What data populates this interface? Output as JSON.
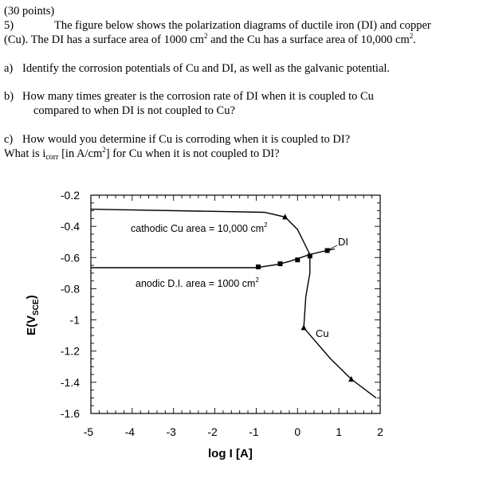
{
  "header": {
    "points": "(30 points)",
    "problem_number": "5)",
    "intro_line1": "The figure below shows the polarization diagrams of ductile iron (DI) and copper",
    "intro_line2_a": "(Cu).  The DI has a surface area of 1000 cm",
    "intro_line2_b": " and the Cu has a surface area of 10,000 cm",
    "intro_line2_end": ".",
    "sup2": "2"
  },
  "questions": {
    "a_label": "a)",
    "a_text": "Identify the corrosion potentials of Cu and DI, as well as the galvanic potential.",
    "b_label": "b)",
    "b_text1": "How many times greater is the corrosion rate of DI when it is coupled to Cu",
    "b_text2": "compared to when DI is not coupled to Cu?",
    "c_label": "c)",
    "c_text1": "How would you determine if Cu is corroding when it is coupled to DI?",
    "c_text2_a": "What is i",
    "c_text2_sub": "corr",
    "c_text2_b": " [in A/cm",
    "c_text2_c": "] for Cu when it is not coupled to DI?"
  },
  "chart_data": {
    "type": "line",
    "title": "",
    "xlabel": "log I [A]",
    "ylabel_main": "E(V",
    "ylabel_sub": "SCE",
    "ylabel_close": ")",
    "xlim": [
      -5,
      2
    ],
    "ylim": [
      -1.6,
      -0.2
    ],
    "x_ticks": [
      "-5",
      "-4",
      "-3",
      "-2",
      "-1",
      "0",
      "1",
      "2"
    ],
    "y_ticks": [
      "-0.2",
      "-0.4",
      "-0.6",
      "-0.8",
      "-1",
      "-1.2",
      "-1.4",
      "-1.6"
    ],
    "annotations": {
      "cathodic_a": "cathodic Cu area = 10,000 cm",
      "cathodic_sup": "2",
      "anodic_a": "anodic D.I. area = 1000 cm",
      "anodic_sup": "2",
      "di_label": "DI",
      "cu_label": "Cu"
    },
    "series": [
      {
        "name": "Cu",
        "marker": "triangle",
        "points": [
          [
            -5.0,
            -0.29
          ],
          [
            -0.8,
            -0.31
          ],
          [
            -0.3,
            -0.34
          ],
          [
            0.0,
            -0.42
          ],
          [
            0.3,
            -0.58
          ],
          [
            0.3,
            -0.7
          ],
          [
            0.2,
            -0.85
          ],
          [
            0.15,
            -1.05
          ],
          [
            0.8,
            -1.25
          ],
          [
            1.3,
            -1.38
          ],
          [
            1.9,
            -1.5
          ]
        ],
        "marker_points": [
          [
            -0.3,
            -0.34
          ],
          [
            0.15,
            -1.05
          ],
          [
            1.3,
            -1.38
          ]
        ]
      },
      {
        "name": "DI",
        "marker": "square",
        "points": [
          [
            -5.0,
            -0.665
          ],
          [
            -1.0,
            -0.665
          ],
          [
            -0.5,
            -0.645
          ],
          [
            -0.2,
            -0.625
          ],
          [
            0.3,
            -0.58
          ],
          [
            0.7,
            -0.555
          ],
          [
            0.9,
            -0.545
          ]
        ],
        "marker_points": [
          [
            -0.95,
            -0.66
          ],
          [
            -0.42,
            -0.64
          ],
          [
            0.0,
            -0.615
          ],
          [
            0.3,
            -0.59
          ],
          [
            0.72,
            -0.555
          ]
        ]
      }
    ]
  }
}
